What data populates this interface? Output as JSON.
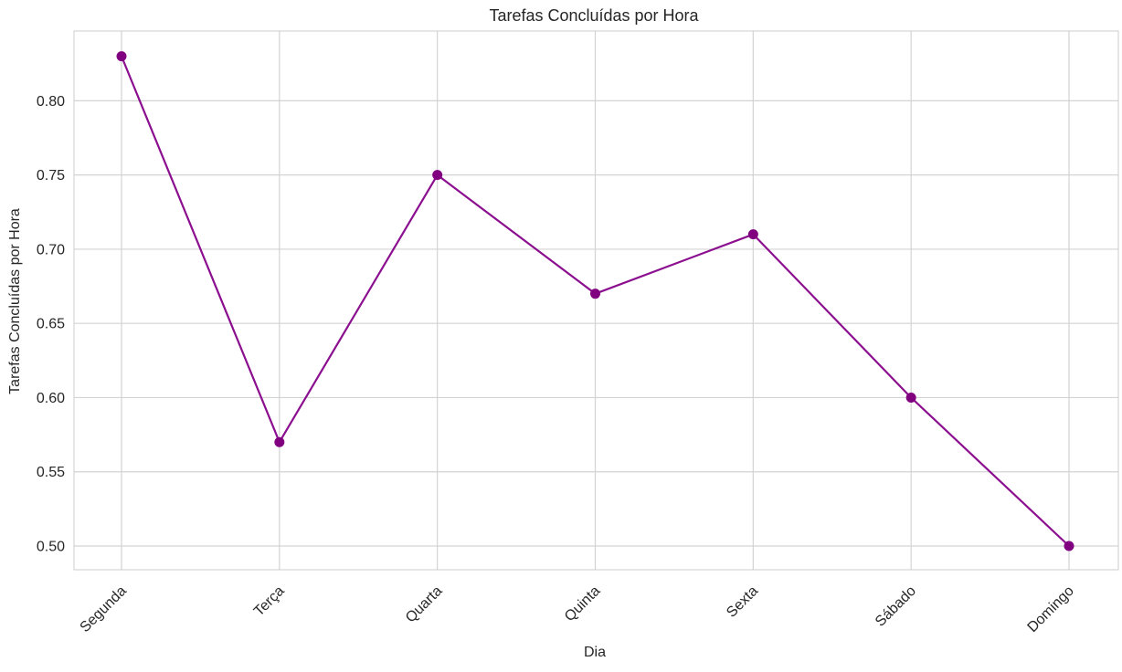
{
  "chart_data": {
    "type": "line",
    "title": "Tarefas Concluídas por Hora",
    "xlabel": "Dia",
    "ylabel": "Tarefas Concluídas por Hora",
    "categories": [
      "Segunda",
      "Terça",
      "Quarta",
      "Quinta",
      "Sexta",
      "Sábado",
      "Domingo"
    ],
    "series": [
      {
        "values": [
          0.83,
          0.57,
          0.75,
          0.67,
          0.71,
          0.6,
          0.5
        ]
      }
    ],
    "ylim": [
      0.484,
      0.847
    ],
    "yticks": [
      "0.50",
      "0.55",
      "0.60",
      "0.65",
      "0.70",
      "0.75",
      "0.80"
    ],
    "grid": true,
    "legend": "none",
    "colors": {
      "line": "#8b0f8f",
      "marker": "#800080",
      "grid": "#d3d3d3",
      "axes_edge": "#cccccc"
    }
  }
}
